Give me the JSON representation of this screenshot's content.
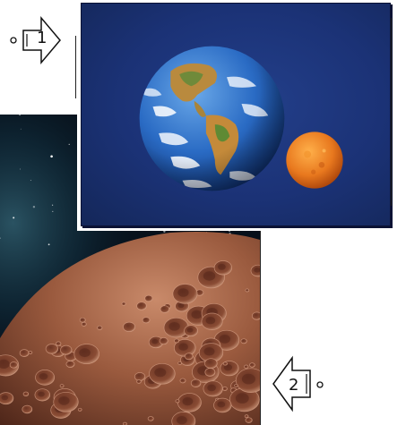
{
  "figure": {
    "label_1": "1",
    "label_2": "2"
  },
  "colors": {
    "panel_1_background": "#1b3276",
    "earth_ocean": "#2a6bc4",
    "earth_land": "#c48a3a",
    "small_planet": "#e8781e",
    "cratered_planet": "#9a5a3e",
    "starfield": "#07101a"
  }
}
